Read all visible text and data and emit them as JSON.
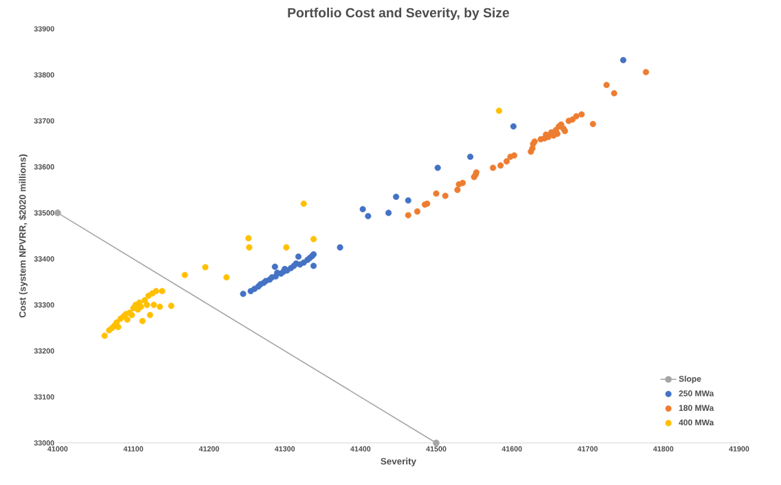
{
  "chart_data": {
    "type": "scatter",
    "title": "Portfolio Cost and Severity, by Size",
    "xlabel": "Severity",
    "ylabel": "Cost (system NPVRR, $2020 millions)",
    "xlim": [
      41000,
      41900
    ],
    "xticks": [
      41000,
      41100,
      41200,
      41300,
      41400,
      41500,
      41600,
      41700,
      41800,
      41900
    ],
    "ylim": [
      33000,
      33900
    ],
    "yticks": [
      33000,
      33100,
      33200,
      33300,
      33400,
      33500,
      33600,
      33700,
      33800,
      33900
    ],
    "grid": false,
    "legend": "bottom right",
    "marker": "circle",
    "series": [
      {
        "name": "Slope",
        "type": "line",
        "color": "#a5a5a5",
        "x": [
          41000,
          41500
        ],
        "values": [
          33500,
          33000
        ]
      },
      {
        "name": "250 MWa",
        "color": "#4472c4",
        "x": [
          41245,
          41255,
          41260,
          41265,
          41268,
          41272,
          41275,
          41280,
          41283,
          41288,
          41290,
          41287,
          41295,
          41298,
          41300,
          41303,
          41308,
          41312,
          41315,
          41318,
          41320,
          41325,
          41330,
          41333,
          41336,
          41338,
          41338,
          41373,
          41403,
          41410,
          41437,
          41447,
          41463,
          41502,
          41545,
          41602,
          41747
        ],
        "values": [
          33324,
          33330,
          33335,
          33340,
          33345,
          33348,
          33352,
          33355,
          33360,
          33362,
          33370,
          33383,
          33368,
          33372,
          33378,
          33375,
          33380,
          33385,
          33390,
          33405,
          33388,
          33392,
          33398,
          33402,
          33406,
          33410,
          33385,
          33425,
          33508,
          33493,
          33500,
          33535,
          33527,
          33598,
          33622,
          33688,
          33832
        ]
      },
      {
        "name": "180 MWa",
        "color": "#ed7d31",
        "x": [
          41463,
          41475,
          41485,
          41488,
          41500,
          41512,
          41528,
          41530,
          41535,
          41550,
          41553,
          41552,
          41575,
          41585,
          41593,
          41598,
          41603,
          41625,
          41627,
          41628,
          41630,
          41638,
          41643,
          41645,
          41648,
          41652,
          41655,
          41658,
          41660,
          41662,
          41665,
          41668,
          41670,
          41675,
          41680,
          41685,
          41692,
          41707,
          41725,
          41735,
          41777
        ],
        "values": [
          33495,
          33503,
          33518,
          33520,
          33542,
          33537,
          33550,
          33562,
          33565,
          33578,
          33588,
          33583,
          33598,
          33603,
          33612,
          33622,
          33625,
          33633,
          33640,
          33650,
          33655,
          33660,
          33662,
          33670,
          33665,
          33675,
          33668,
          33680,
          33672,
          33688,
          33692,
          33683,
          33678,
          33700,
          33703,
          33710,
          33714,
          33693,
          33778,
          33760,
          33806
        ]
      },
      {
        "name": "400 MWa",
        "color": "#ffc000",
        "x": [
          41062,
          41068,
          41072,
          41075,
          41078,
          41080,
          41083,
          41087,
          41090,
          41092,
          41095,
          41098,
          41100,
          41103,
          41106,
          41108,
          41110,
          41112,
          41115,
          41118,
          41120,
          41122,
          41125,
          41127,
          41130,
          41135,
          41138,
          41150,
          41168,
          41195,
          41223,
          41252,
          41253,
          41302,
          41325,
          41338,
          41583
        ],
        "values": [
          33233,
          33245,
          33250,
          33255,
          33262,
          33252,
          33270,
          33275,
          33280,
          33268,
          33283,
          33278,
          33293,
          33300,
          33290,
          33305,
          33296,
          33265,
          33310,
          33300,
          33320,
          33278,
          33325,
          33300,
          33330,
          33296,
          33330,
          33298,
          33365,
          33382,
          33360,
          33445,
          33425,
          33425,
          33520,
          33443,
          33722
        ]
      }
    ]
  }
}
